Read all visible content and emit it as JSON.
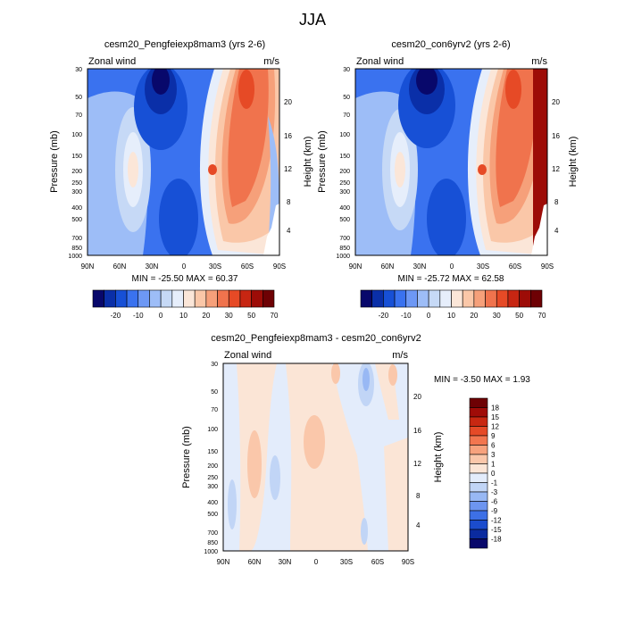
{
  "figure": {
    "title": "JJA"
  },
  "chart_data": [
    {
      "type": "heatmap",
      "title": "cesm20_Pengfeiexp8mam3 (yrs 2-6)",
      "left_string": "Zonal wind",
      "right_string": "m/s",
      "ylabel": "Pressure (mb)",
      "ylabel_right": "Height (km)",
      "x_ticks": [
        "90N",
        "60N",
        "30N",
        "0",
        "30S",
        "60S",
        "90S"
      ],
      "y_ticks": [
        "30",
        "50",
        "70",
        "100",
        "150",
        "200",
        "250",
        "300",
        "400",
        "500",
        "700",
        "850",
        "1000"
      ],
      "y_ticks_right": [
        "20",
        "16",
        "12",
        "8",
        "4"
      ],
      "min_max": "MIN = -25.50   MAX =  60.37",
      "colorbar_labels": [
        "-20",
        "-10",
        "0",
        "10",
        "20",
        "30",
        "50",
        "70"
      ],
      "colorbar_colors": [
        "#08086b",
        "#0a2fa8",
        "#1750d6",
        "#3a72ef",
        "#6d98f5",
        "#9dbdf7",
        "#c6d9f6",
        "#e6eefb",
        "#fbe6d8",
        "#fac7a8",
        "#f6a07a",
        "#f0734d",
        "#e64a26",
        "#c72612",
        "#9d0c07",
        "#6e0104"
      ]
    },
    {
      "type": "heatmap",
      "title": "cesm20_con6yrv2 (yrs 2-6)",
      "left_string": "Zonal wind",
      "right_string": "m/s",
      "ylabel": "Pressure (mb)",
      "ylabel_right": "Height (km)",
      "x_ticks": [
        "90N",
        "60N",
        "30N",
        "0",
        "30S",
        "60S",
        "90S"
      ],
      "y_ticks": [
        "30",
        "50",
        "70",
        "100",
        "150",
        "200",
        "250",
        "300",
        "400",
        "500",
        "700",
        "850",
        "1000"
      ],
      "y_ticks_right": [
        "20",
        "16",
        "12",
        "8",
        "4"
      ],
      "min_max": "MIN = -25.72   MAX =  62.58",
      "colorbar_labels": [
        "-20",
        "-10",
        "0",
        "10",
        "20",
        "30",
        "50",
        "70"
      ],
      "colorbar_colors": [
        "#08086b",
        "#0a2fa8",
        "#1750d6",
        "#3a72ef",
        "#6d98f5",
        "#9dbdf7",
        "#c6d9f6",
        "#e6eefb",
        "#fbe6d8",
        "#fac7a8",
        "#f6a07a",
        "#f0734d",
        "#e64a26",
        "#c72612",
        "#9d0c07",
        "#6e0104"
      ]
    },
    {
      "type": "heatmap",
      "title": "cesm20_Pengfeiexp8mam3 - cesm20_con6yrv2",
      "left_string": "Zonal wind",
      "right_string": "m/s",
      "ylabel": "Pressure (mb)",
      "ylabel_right": "Height (km)",
      "x_ticks": [
        "90N",
        "60N",
        "30N",
        "0",
        "30S",
        "60S",
        "90S"
      ],
      "y_ticks": [
        "30",
        "50",
        "70",
        "100",
        "150",
        "200",
        "250",
        "300",
        "400",
        "500",
        "700",
        "850",
        "1000"
      ],
      "y_ticks_right": [
        "20",
        "16",
        "12",
        "8",
        "4"
      ],
      "min_max": "MIN =  -3.50   MAX =   1.93",
      "colorbar_labels": [
        "18",
        "15",
        "12",
        "9",
        "6",
        "3",
        "1",
        "0",
        "-1",
        "-3",
        "-6",
        "-9",
        "-12",
        "-15",
        "-18"
      ],
      "colorbar_colors": [
        "#6e0104",
        "#a00c08",
        "#c82812",
        "#e54a27",
        "#f2764f",
        "#f7a27d",
        "#fac7aa",
        "#fbe5d6",
        "#e3ecfb",
        "#c1d5f6",
        "#98b8f4",
        "#6d95f0",
        "#3d70e6",
        "#1b4ccd",
        "#0b2b9f",
        "#08086b"
      ]
    }
  ]
}
